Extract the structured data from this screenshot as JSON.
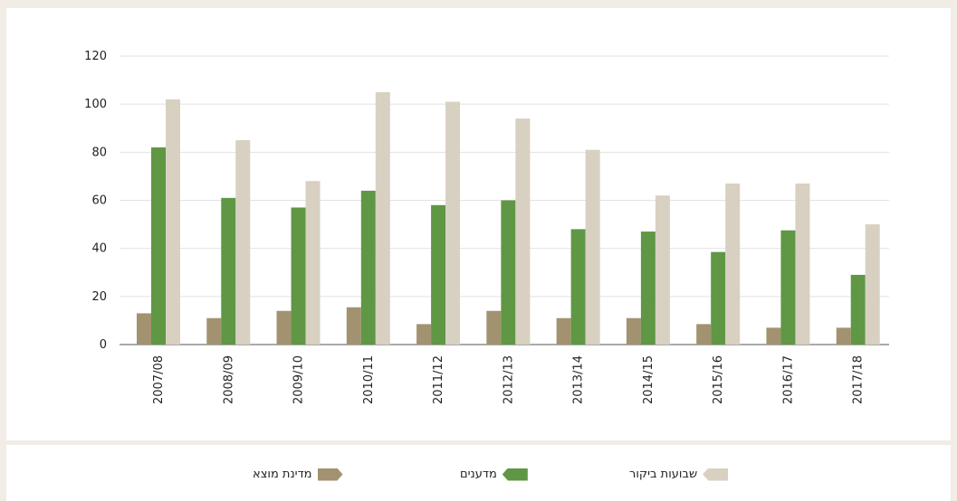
{
  "chart_data": {
    "type": "bar",
    "categories": [
      "2007/08",
      "2008/09",
      "2009/10",
      "2010/11",
      "2011/12",
      "2012/13",
      "2013/14",
      "2014/15",
      "2015/16",
      "2016/17",
      "2017/18"
    ],
    "series": [
      {
        "name": "מדינת מוצא",
        "color": "#a29270",
        "values": [
          13,
          11,
          14,
          15.5,
          8.5,
          14,
          11,
          11,
          8.5,
          7,
          7
        ]
      },
      {
        "name": "מדענים",
        "color": "#5f9744",
        "values": [
          82,
          61,
          57,
          64,
          58,
          60,
          48,
          47,
          38.5,
          47.5,
          29
        ]
      },
      {
        "name": "שבועות ביקור",
        "color": "#d8d0c1",
        "values": [
          102,
          85,
          68,
          105,
          101,
          94,
          81,
          62,
          67,
          67,
          50
        ]
      }
    ],
    "yticks": [
      0,
      20,
      40,
      60,
      80,
      100,
      120
    ],
    "ylim": [
      0,
      120
    ],
    "grid": true,
    "legend_position": "bottom"
  }
}
